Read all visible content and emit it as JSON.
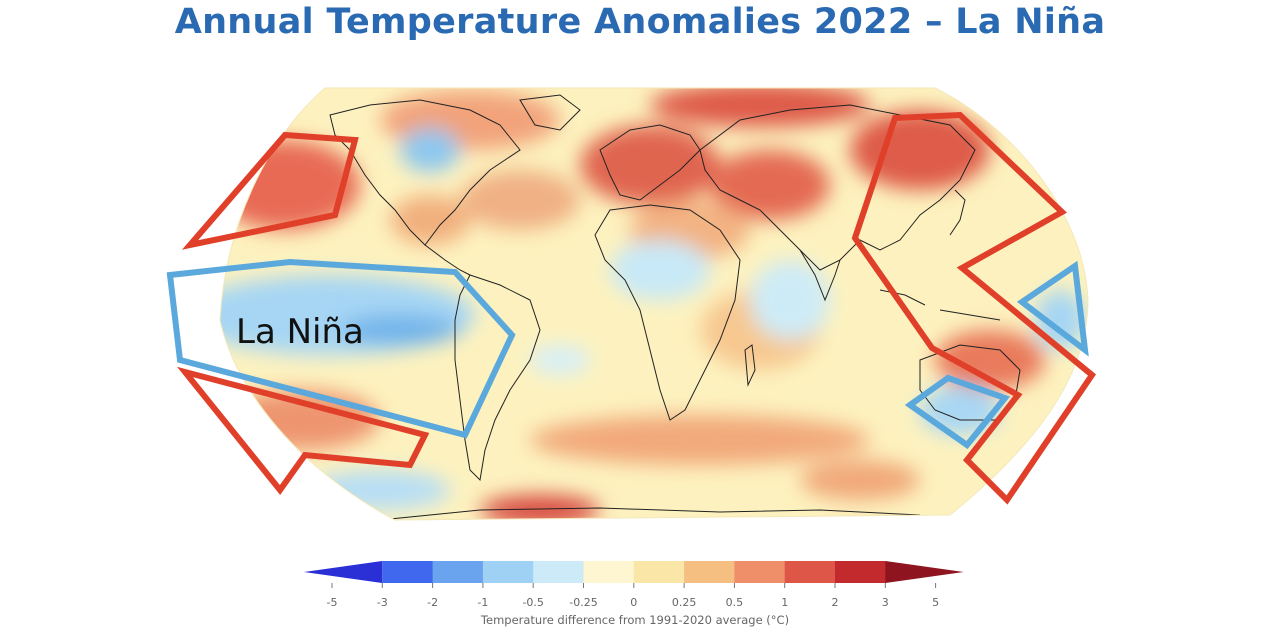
{
  "title": "Annual Temperature Anomalies 2022 – La Niña",
  "annotation_label": "La Niña",
  "colors": {
    "title": "#2a6ab3",
    "ocean_base": "#fdf2bf",
    "warm_outline": "#e0402a",
    "cool_outline": "#5aa8dc",
    "legend_text": "#666666"
  },
  "legend": {
    "ticks": [
      "-5",
      "-3",
      "-2",
      "-1",
      "-0.5",
      "-0.25",
      "0",
      "0.25",
      "0.5",
      "1",
      "2",
      "3",
      "5"
    ],
    "bin_colors": [
      "#2a2fd6",
      "#3f68ee",
      "#6aa3ee",
      "#9ed1f3",
      "#cdeaf8",
      "#fdf6d0",
      "#fae6a6",
      "#f6bf82",
      "#ee8f6a",
      "#de5648",
      "#c22a2d",
      "#8e1520"
    ],
    "caption": "Temperature difference from 1991-2020 average (°C)"
  },
  "regions": {
    "warm_outlined": [
      "north-pacific-east",
      "south-pacific-east",
      "western-pacific-east-asia"
    ],
    "cool_outlined": [
      "eastern-tropical-pacific",
      "central-pacific-east-of-new-guinea",
      "eastern-australia"
    ]
  }
}
